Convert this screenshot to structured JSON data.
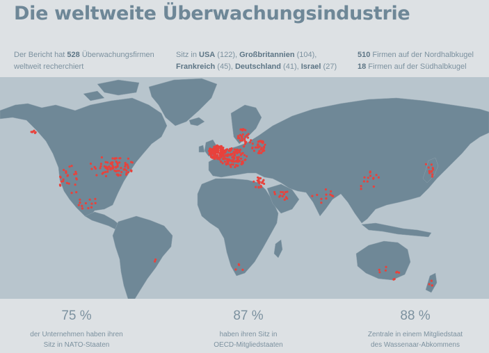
{
  "title": "Die weltweite Überwachungsindustrie",
  "stats": {
    "left": {
      "pre": "Der Bericht hat ",
      "count": "528",
      "post": " Überwachungsfirmen",
      "line2": "weltweit recherchiert"
    },
    "middle": {
      "pre": "Sitz in ",
      "usa": "USA",
      "usa_n": " (122), ",
      "uk": "Großbritannien",
      "uk_n": " (104),",
      "fr": "Frankreich",
      "fr_n": " (45), ",
      "de": "Deutschland",
      "de_n": " (41), ",
      "il": "Israel",
      "il_n": " (27)"
    },
    "right": {
      "north_n": "510",
      "north_t": " Firmen auf der Nordhalbkugel",
      "south_n": "18",
      "south_t": " Firmen auf der Südhalbkugel"
    }
  },
  "map": {
    "ocean_color": "#b8c5cd",
    "land_color": "#6f8897",
    "marker_color": "#e8423c",
    "markers": {
      "north_america": 122,
      "europe": 300,
      "middle_east": 35,
      "asia": 35,
      "southern_hemisphere": 18
    }
  },
  "kpis": [
    {
      "value": "75 %",
      "line1": "der Unternehmen haben ihren",
      "line2": "Sitz in NATO-Staaten"
    },
    {
      "value": "87 %",
      "line1": "haben ihren Sitz in",
      "line2": "OECD-Mitgliedstaaten"
    },
    {
      "value": "88 %",
      "line1": "Zentrale in einem Mitgliedstaat",
      "line2": "des Wassenaar-Abkommens"
    }
  ]
}
